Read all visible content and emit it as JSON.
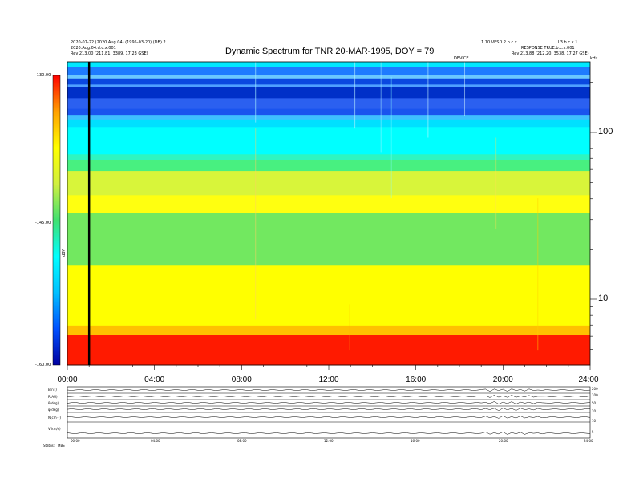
{
  "header": {
    "left_line1": "2020-07-22 (2020.Aug.04) (1995-03-20) (DB) 2",
    "left_line2": "2020.Aug.04.d.c.x.001",
    "left_line3": "Rev 213.00 (211.81, 3389, 17.23 GSE)",
    "right_line1a": "1.10.VESD.2.b.c.x",
    "right_line1b": "L3.b.c.x.1",
    "right_line2": "RESPONSE TRUE.b.c.x.001",
    "right_line3": "Rev 213.88 (212.20, 3538, 17.27 GSE)",
    "top_small_center": "DEVICE",
    "top_small_right": "kHz"
  },
  "chart_data": {
    "type": "heatmap",
    "title": "Dynamic Spectrum for TNR 20-MAR-1995, DOY = 79",
    "x_ticks": [
      "00:00",
      "04:00",
      "08:00",
      "12:00",
      "16:00",
      "20:00",
      "24:00"
    ],
    "y_ticks": [
      "100",
      "10"
    ],
    "y_scale": "log",
    "colorbar_ticks": [
      "-130.00",
      "-145.00",
      "-160.00"
    ],
    "colorbar_label": "dBV",
    "colorbar_range": [
      -160,
      -130
    ],
    "colormap": [
      "#0000a0",
      "#0050ff",
      "#00c0ff",
      "#00ffff",
      "#40e070",
      "#d0f040",
      "#ffff00",
      "#ffa000",
      "#ff0000"
    ],
    "marker_x_hour": 1.0,
    "bands": [
      {
        "y_frac_start": 0.0,
        "y_frac_end": 0.018,
        "color": "#00e8ff"
      },
      {
        "y_frac_start": 0.018,
        "y_frac_end": 0.045,
        "color": "#1e7bff"
      },
      {
        "y_frac_start": 0.045,
        "y_frac_end": 0.055,
        "color": "#6ac8ff"
      },
      {
        "y_frac_start": 0.055,
        "y_frac_end": 0.075,
        "color": "#0a48e0"
      },
      {
        "y_frac_start": 0.075,
        "y_frac_end": 0.082,
        "color": "#4fa0ff"
      },
      {
        "y_frac_start": 0.082,
        "y_frac_end": 0.12,
        "color": "#0030c8"
      },
      {
        "y_frac_start": 0.12,
        "y_frac_end": 0.155,
        "color": "#2b60f0"
      },
      {
        "y_frac_start": 0.155,
        "y_frac_end": 0.175,
        "color": "#1a54ee"
      },
      {
        "y_frac_start": 0.175,
        "y_frac_end": 0.19,
        "color": "#3fbfff"
      },
      {
        "y_frac_start": 0.19,
        "y_frac_end": 0.215,
        "color": "#00e0ff"
      },
      {
        "y_frac_start": 0.215,
        "y_frac_end": 0.305,
        "color": "#00ffff"
      },
      {
        "y_frac_start": 0.305,
        "y_frac_end": 0.325,
        "color": "#2ef5c0"
      },
      {
        "y_frac_start": 0.325,
        "y_frac_end": 0.36,
        "color": "#48f080"
      },
      {
        "y_frac_start": 0.36,
        "y_frac_end": 0.44,
        "color": "#d8f53a"
      },
      {
        "y_frac_start": 0.44,
        "y_frac_end": 0.5,
        "color": "#ffff10"
      },
      {
        "y_frac_start": 0.5,
        "y_frac_end": 0.67,
        "color": "#72e860"
      },
      {
        "y_frac_start": 0.67,
        "y_frac_end": 0.87,
        "color": "#ffff00"
      },
      {
        "y_frac_start": 0.87,
        "y_frac_end": 0.9,
        "color": "#ffc000"
      },
      {
        "y_frac_start": 0.9,
        "y_frac_end": 1.0,
        "color": "#ff1a00"
      }
    ]
  },
  "sub_panels": {
    "labels": [
      "B(nT)",
      "R(AU)",
      "θ(deg)",
      "φ(deg)",
      "N(cm⁻³)",
      "V(km/s)"
    ],
    "right_ticks": [
      "200",
      "100",
      "50",
      "20",
      "10",
      "5"
    ],
    "x_ticks": [
      "00:00",
      "04:00",
      "08:00",
      "12:00",
      "16:00",
      "20:00",
      "24:00"
    ],
    "footer_label": "Status:",
    "footer_value": "MBS"
  }
}
